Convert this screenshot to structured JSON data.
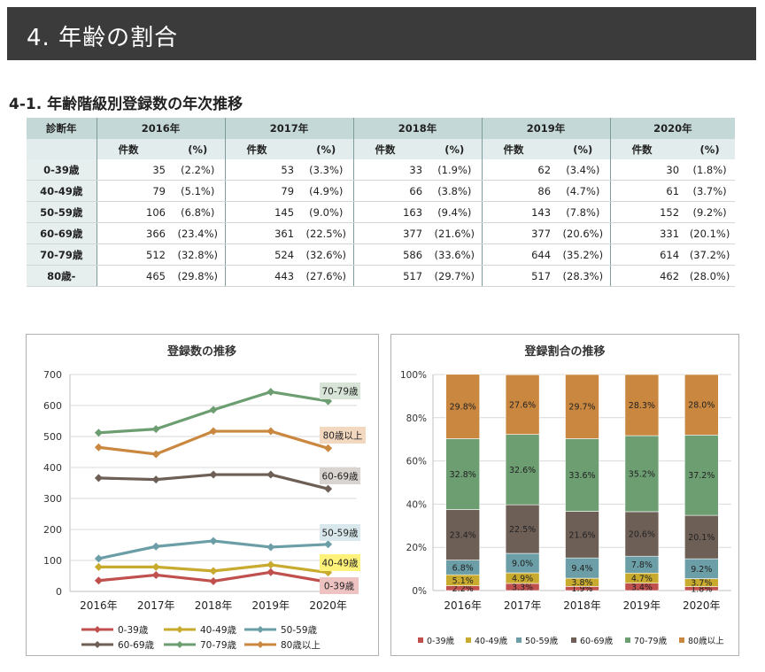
{
  "title": "4.  年齢の割合",
  "subtitle": "4-1. 年齢階級別登録数の年次推移",
  "table": {
    "corner": "診断年",
    "count_label": "件数",
    "pct_label": "(%)",
    "years": [
      "2016年",
      "2017年",
      "2018年",
      "2019年",
      "2020年"
    ],
    "rows": [
      {
        "label": "0-39歳",
        "cells": [
          [
            "35",
            "(2.2%)"
          ],
          [
            "53",
            "(3.3%)"
          ],
          [
            "33",
            "(1.9%)"
          ],
          [
            "62",
            "(3.4%)"
          ],
          [
            "30",
            "(1.8%)"
          ]
        ]
      },
      {
        "label": "40-49歳",
        "cells": [
          [
            "79",
            "(5.1%)"
          ],
          [
            "79",
            "(4.9%)"
          ],
          [
            "66",
            "(3.8%)"
          ],
          [
            "86",
            "(4.7%)"
          ],
          [
            "61",
            "(3.7%)"
          ]
        ]
      },
      {
        "label": "50-59歳",
        "cells": [
          [
            "106",
            "(6.8%)"
          ],
          [
            "145",
            "(9.0%)"
          ],
          [
            "163",
            "(9.4%)"
          ],
          [
            "143",
            "(7.8%)"
          ],
          [
            "152",
            "(9.2%)"
          ]
        ]
      },
      {
        "label": "60-69歳",
        "cells": [
          [
            "366",
            "(23.4%)"
          ],
          [
            "361",
            "(22.5%)"
          ],
          [
            "377",
            "(21.6%)"
          ],
          [
            "377",
            "(20.6%)"
          ],
          [
            "331",
            "(20.1%)"
          ]
        ]
      },
      {
        "label": "70-79歳",
        "cells": [
          [
            "512",
            "(32.8%)"
          ],
          [
            "524",
            "(32.6%)"
          ],
          [
            "586",
            "(33.6%)"
          ],
          [
            "644",
            "(35.2%)"
          ],
          [
            "614",
            "(37.2%)"
          ]
        ]
      },
      {
        "label": "80歳-",
        "cells": [
          [
            "465",
            "(29.8%)"
          ],
          [
            "443",
            "(27.6%)"
          ],
          [
            "517",
            "(29.7%)"
          ],
          [
            "517",
            "(28.3%)"
          ],
          [
            "462",
            "(28.0%)"
          ]
        ]
      }
    ]
  },
  "chart_data": [
    {
      "type": "line",
      "title": "登録数の推移",
      "categories": [
        "2016年",
        "2017年",
        "2018年",
        "2019年",
        "2020年"
      ],
      "ylim": [
        0,
        700
      ],
      "yticks": [
        "0",
        "100",
        "200",
        "300",
        "400",
        "500",
        "600",
        "700"
      ],
      "grid": true,
      "legend_position": "bottom",
      "series": [
        {
          "name": "0-39歳",
          "color": "#c0504d",
          "values": [
            35,
            53,
            33,
            62,
            30
          ]
        },
        {
          "name": "40-49歳",
          "color": "#c8aa2e",
          "values": [
            79,
            79,
            66,
            86,
            61
          ]
        },
        {
          "name": "50-59歳",
          "color": "#6b9ea6",
          "values": [
            106,
            145,
            163,
            143,
            152
          ]
        },
        {
          "name": "60-69歳",
          "color": "#6e5f56",
          "values": [
            366,
            361,
            377,
            377,
            331
          ]
        },
        {
          "name": "70-79歳",
          "color": "#6d9e72",
          "values": [
            512,
            524,
            586,
            644,
            614
          ]
        },
        {
          "name": "80歳以上",
          "color": "#c9873f",
          "values": [
            465,
            443,
            517,
            517,
            462
          ]
        }
      ],
      "end_labels": [
        {
          "text": "70-79歳",
          "bg": "#d7e4d7"
        },
        {
          "text": "80歳以上",
          "bg": "#f3d8c0"
        },
        {
          "text": "60-69歳",
          "bg": "#d9d4d0"
        },
        {
          "text": "50-59歳",
          "bg": "#d8e8ec"
        },
        {
          "text": "40-49歳",
          "bg": "#fff27a"
        },
        {
          "text": "0-39歳",
          "bg": "#efc2c2"
        }
      ]
    },
    {
      "type": "bar",
      "stacked": true,
      "title": "登録割合の推移",
      "categories": [
        "2016年",
        "2017年",
        "2018年",
        "2019年",
        "2020年"
      ],
      "ylim": [
        0,
        100
      ],
      "yticks": [
        "0%",
        "20%",
        "40%",
        "60%",
        "80%",
        "100%"
      ],
      "grid": true,
      "legend_position": "bottom",
      "series": [
        {
          "name": "0-39歳",
          "color": "#c0504d",
          "values": [
            2.2,
            3.3,
            1.9,
            3.4,
            1.8
          ],
          "labels": [
            "2.2%",
            "3.3%",
            "1.9%",
            "3.4%",
            "1.8%"
          ]
        },
        {
          "name": "40-49歳",
          "color": "#c8aa2e",
          "values": [
            5.1,
            4.9,
            3.8,
            4.7,
            3.7
          ],
          "labels": [
            "5.1%",
            "4.9%",
            "3.8%",
            "4.7%",
            "3.7%"
          ]
        },
        {
          "name": "50-59歳",
          "color": "#6b9ea6",
          "values": [
            6.8,
            9.0,
            9.4,
            7.8,
            9.2
          ],
          "labels": [
            "6.8%",
            "9.0%",
            "9.4%",
            "7.8%",
            "9.2%"
          ]
        },
        {
          "name": "60-69歳",
          "color": "#6e5f56",
          "values": [
            23.4,
            22.5,
            21.6,
            20.6,
            20.1
          ],
          "labels": [
            "23.4%",
            "22.5%",
            "21.6%",
            "20.6%",
            "20.1%"
          ]
        },
        {
          "name": "70-79歳",
          "color": "#6d9e72",
          "values": [
            32.8,
            32.6,
            33.6,
            35.2,
            37.2
          ],
          "labels": [
            "32.8%",
            "32.6%",
            "33.6%",
            "35.2%",
            "37.2%"
          ]
        },
        {
          "name": "80歳以上",
          "color": "#c9873f",
          "values": [
            29.8,
            27.6,
            29.7,
            28.3,
            28.0
          ],
          "labels": [
            "29.8%",
            "27.6%",
            "29.7%",
            "28.3%",
            "28.0%"
          ]
        }
      ]
    }
  ]
}
